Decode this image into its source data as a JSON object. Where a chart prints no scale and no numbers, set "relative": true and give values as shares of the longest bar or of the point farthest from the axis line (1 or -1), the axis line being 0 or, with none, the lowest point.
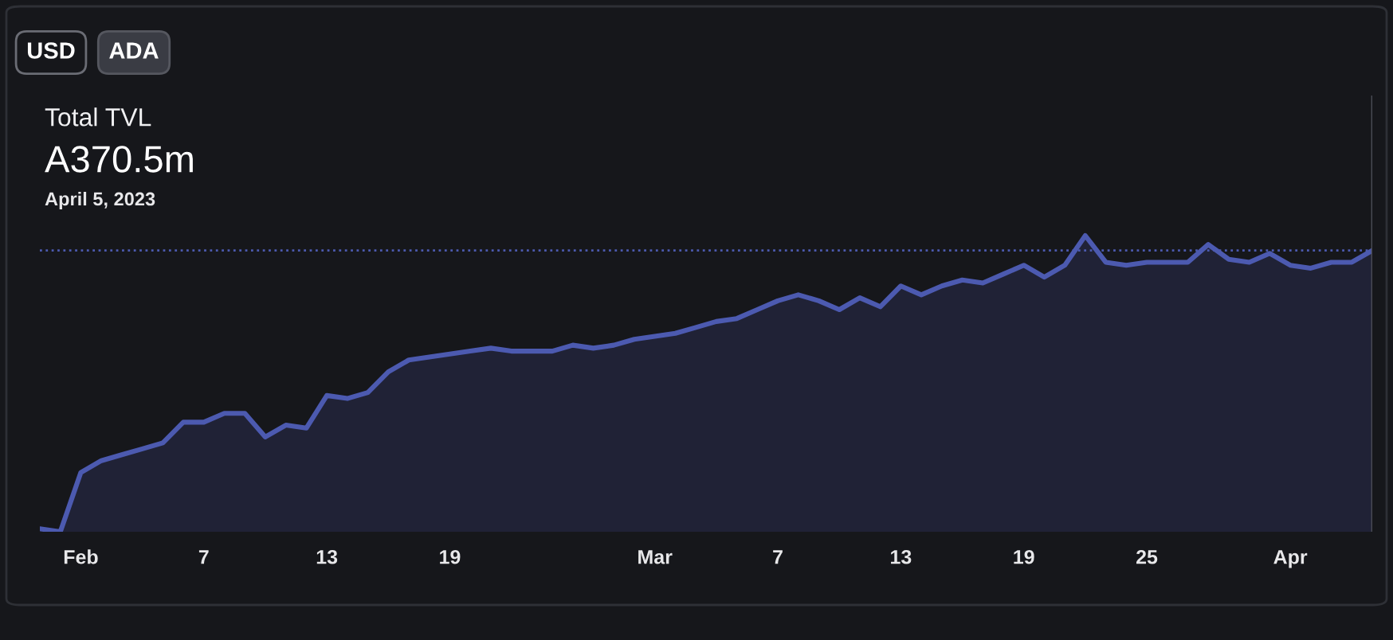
{
  "chart_data": {
    "type": "area",
    "title": "Total TVL",
    "subtitle": "A370.5m",
    "annotations": [
      "USD",
      "ADA",
      "April 5, 2023"
    ],
    "relative": true,
    "x": [
      "2023-01-30",
      "2023-01-31",
      "2023-02-01",
      "2023-02-02",
      "2023-02-03",
      "2023-02-04",
      "2023-02-05",
      "2023-02-06",
      "2023-02-07",
      "2023-02-08",
      "2023-02-09",
      "2023-02-10",
      "2023-02-11",
      "2023-02-12",
      "2023-02-13",
      "2023-02-14",
      "2023-02-15",
      "2023-02-16",
      "2023-02-17",
      "2023-02-18",
      "2023-02-19",
      "2023-02-20",
      "2023-02-21",
      "2023-02-22",
      "2023-02-23",
      "2023-02-24",
      "2023-02-25",
      "2023-02-26",
      "2023-02-27",
      "2023-02-28",
      "2023-03-01",
      "2023-03-02",
      "2023-03-03",
      "2023-03-04",
      "2023-03-05",
      "2023-03-06",
      "2023-03-07",
      "2023-03-08",
      "2023-03-09",
      "2023-03-10",
      "2023-03-11",
      "2023-03-12",
      "2023-03-13",
      "2023-03-14",
      "2023-03-15",
      "2023-03-16",
      "2023-03-17",
      "2023-03-18",
      "2023-03-19",
      "2023-03-20",
      "2023-03-21",
      "2023-03-22",
      "2023-03-23",
      "2023-03-24",
      "2023-03-25",
      "2023-03-26",
      "2023-03-27",
      "2023-03-28",
      "2023-03-29",
      "2023-03-30",
      "2023-03-31",
      "2023-04-01",
      "2023-04-02",
      "2023-04-03",
      "2023-04-04",
      "2023-04-05"
    ],
    "series": [
      {
        "color": "#4c5ab0",
        "values": [
          0.01,
          0,
          0.2,
          0.24,
          0.26,
          0.28,
          0.3,
          0.37,
          0.37,
          0.4,
          0.4,
          0.32,
          0.36,
          0.35,
          0.46,
          0.45,
          0.47,
          0.54,
          0.58,
          0.59,
          0.6,
          0.61,
          0.62,
          0.61,
          0.61,
          0.61,
          0.63,
          0.62,
          0.63,
          0.65,
          0.66,
          0.67,
          0.69,
          0.71,
          0.72,
          0.75,
          0.78,
          0.8,
          0.78,
          0.75,
          0.79,
          0.76,
          0.83,
          0.8,
          0.83,
          0.85,
          0.84,
          0.87,
          0.9,
          0.86,
          0.9,
          1,
          0.91,
          0.9,
          0.91,
          0.91,
          0.91,
          0.97,
          0.92,
          0.91,
          0.94,
          0.9,
          0.89,
          0.91,
          0.91,
          0.95
        ]
      }
    ],
    "xlim": [
      "2023-01-30",
      "2023-04-05"
    ],
    "xticks": [
      {
        "value": "2023-02-01",
        "label": "Feb"
      },
      {
        "value": "2023-02-07",
        "label": "7"
      },
      {
        "value": "2023-02-13",
        "label": "13"
      },
      {
        "value": "2023-02-19",
        "label": "19"
      },
      {
        "value": "2023-03-01",
        "label": "Mar"
      },
      {
        "value": "2023-03-07",
        "label": "7"
      },
      {
        "value": "2023-03-13",
        "label": "13"
      },
      {
        "value": "2023-03-19",
        "label": "19"
      },
      {
        "value": "2023-03-25",
        "label": "25"
      },
      {
        "value": "2023-04-01",
        "label": "Apr"
      }
    ],
    "ref_lines": [
      {
        "axis": "y",
        "value": 0.95,
        "color": "#4c5ab0",
        "line_style": "dotted"
      },
      {
        "axis": "x",
        "value": "2023-04-05",
        "color": "#4a4c55",
        "line_style": "solid"
      }
    ],
    "grid": false,
    "legend": false
  }
}
